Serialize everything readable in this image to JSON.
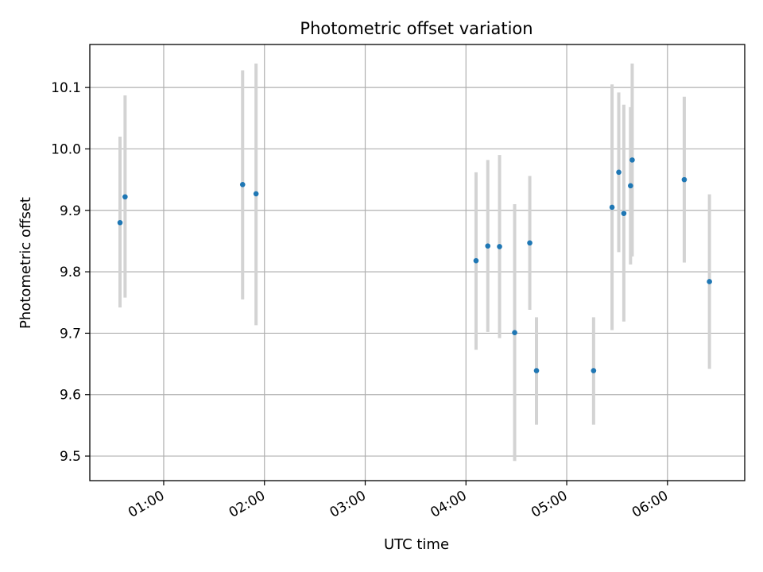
{
  "chart_data": {
    "type": "scatter",
    "title": "Photometric offset variation",
    "xlabel": "UTC time",
    "ylabel": "Photometric offset",
    "x_ticks": [
      "01:00",
      "02:00",
      "03:00",
      "04:00",
      "05:00",
      "06:00"
    ],
    "y_ticks": [
      "9.5",
      "9.6",
      "9.7",
      "9.8",
      "9.9",
      "10.0",
      "10.1"
    ],
    "xlim": [
      "00:16",
      "06:46"
    ],
    "ylim": [
      9.46,
      10.17
    ],
    "grid": true,
    "colors": {
      "marker": "#1f77b4",
      "errorbar": "#d3d3d3",
      "grid": "#b0b0b0"
    },
    "points": [
      {
        "x": "00:34",
        "y": 9.88,
        "err_low": 9.742,
        "err_high": 10.02
      },
      {
        "x": "00:37",
        "y": 9.922,
        "err_low": 9.758,
        "err_high": 10.087
      },
      {
        "x": "01:47",
        "y": 9.942,
        "err_low": 9.755,
        "err_high": 10.128
      },
      {
        "x": "01:55",
        "y": 9.927,
        "err_low": 9.713,
        "err_high": 10.139
      },
      {
        "x": "04:06",
        "y": 9.818,
        "err_low": 9.673,
        "err_high": 9.962
      },
      {
        "x": "04:13",
        "y": 9.842,
        "err_low": 9.702,
        "err_high": 9.982
      },
      {
        "x": "04:20",
        "y": 9.841,
        "err_low": 9.692,
        "err_high": 9.99
      },
      {
        "x": "04:29",
        "y": 9.701,
        "err_low": 9.492,
        "err_high": 9.91
      },
      {
        "x": "04:38",
        "y": 9.847,
        "err_low": 9.738,
        "err_high": 9.956
      },
      {
        "x": "04:42",
        "y": 9.639,
        "err_low": 9.551,
        "err_high": 9.726
      },
      {
        "x": "05:16",
        "y": 9.639,
        "err_low": 9.551,
        "err_high": 9.726
      },
      {
        "x": "05:27",
        "y": 9.905,
        "err_low": 9.705,
        "err_high": 10.105
      },
      {
        "x": "05:31",
        "y": 9.962,
        "err_low": 9.832,
        "err_high": 10.092
      },
      {
        "x": "05:34",
        "y": 9.895,
        "err_low": 9.719,
        "err_high": 10.072
      },
      {
        "x": "05:38",
        "y": 9.94,
        "err_low": 9.812,
        "err_high": 10.068
      },
      {
        "x": "05:39",
        "y": 9.982,
        "err_low": 9.825,
        "err_high": 10.139
      },
      {
        "x": "06:10",
        "y": 9.95,
        "err_low": 9.815,
        "err_high": 10.085
      },
      {
        "x": "06:25",
        "y": 9.784,
        "err_low": 9.642,
        "err_high": 9.926
      }
    ]
  }
}
